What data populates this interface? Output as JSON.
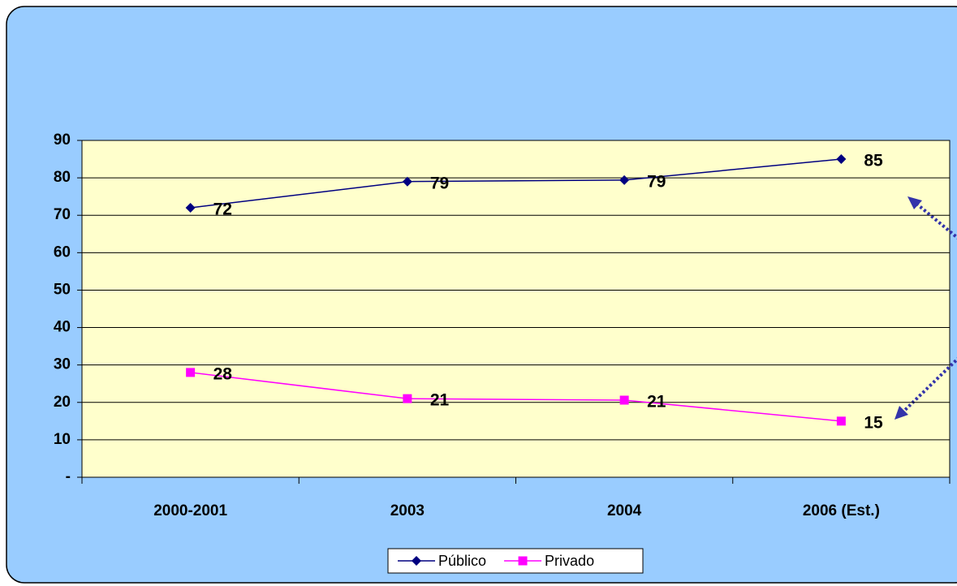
{
  "chart_data": {
    "type": "line",
    "categories": [
      "2000-2001",
      "2003",
      "2004",
      "2006 (Est.)"
    ],
    "series": [
      {
        "name": "Público",
        "color": "#000080",
        "marker": "diamond",
        "values": [
          72,
          79,
          79.4,
          85
        ],
        "value_labels": [
          "72",
          "79",
          "79",
          "85"
        ]
      },
      {
        "name": "Privado",
        "color": "#ff00ff",
        "marker": "square",
        "values": [
          28,
          21,
          20.6,
          15
        ],
        "value_labels": [
          "28",
          "21",
          "21",
          "15"
        ]
      }
    ],
    "ylim": [
      0,
      90
    ],
    "yticks": [
      {
        "value": 0,
        "label": "-"
      },
      10,
      20,
      30,
      40,
      50,
      60,
      70,
      80,
      90
    ],
    "grid": true,
    "legend": "bottom"
  }
}
